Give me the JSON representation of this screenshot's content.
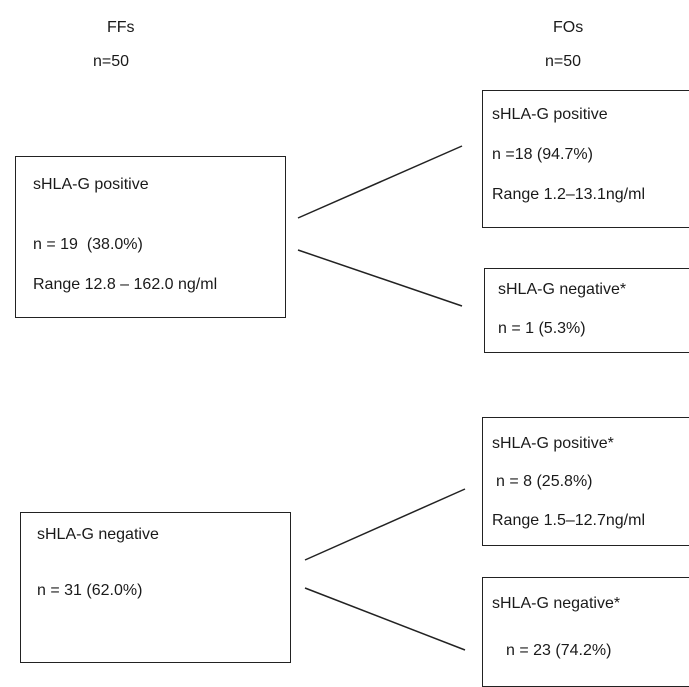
{
  "columns": {
    "ffs": {
      "title": "FFs",
      "n": "n=50"
    },
    "fos": {
      "title": "FOs",
      "n": "n=50"
    }
  },
  "ff_positive": {
    "label": "sHLA-G positive",
    "count": "n = 19  (38.0%)",
    "range": "Range 12.8 – 162.0 ng/ml"
  },
  "ff_negative": {
    "label": "sHLA-G negative",
    "count": "n = 31 (62.0%)"
  },
  "fo_pos_pos": {
    "label": "sHLA-G positive",
    "count": "n =18 (94.7%)",
    "range": "Range 1.2–13.1ng/ml"
  },
  "fo_pos_neg": {
    "label": "sHLA-G negative*",
    "count": "n = 1 (5.3%)"
  },
  "fo_neg_pos": {
    "label": "sHLA-G positive*",
    "count": "n = 8 (25.8%)",
    "range": "Range 1.5–12.7ng/ml"
  },
  "fo_neg_neg": {
    "label": "sHLA-G negative*",
    "count": "n = 23 (74.2%)"
  }
}
